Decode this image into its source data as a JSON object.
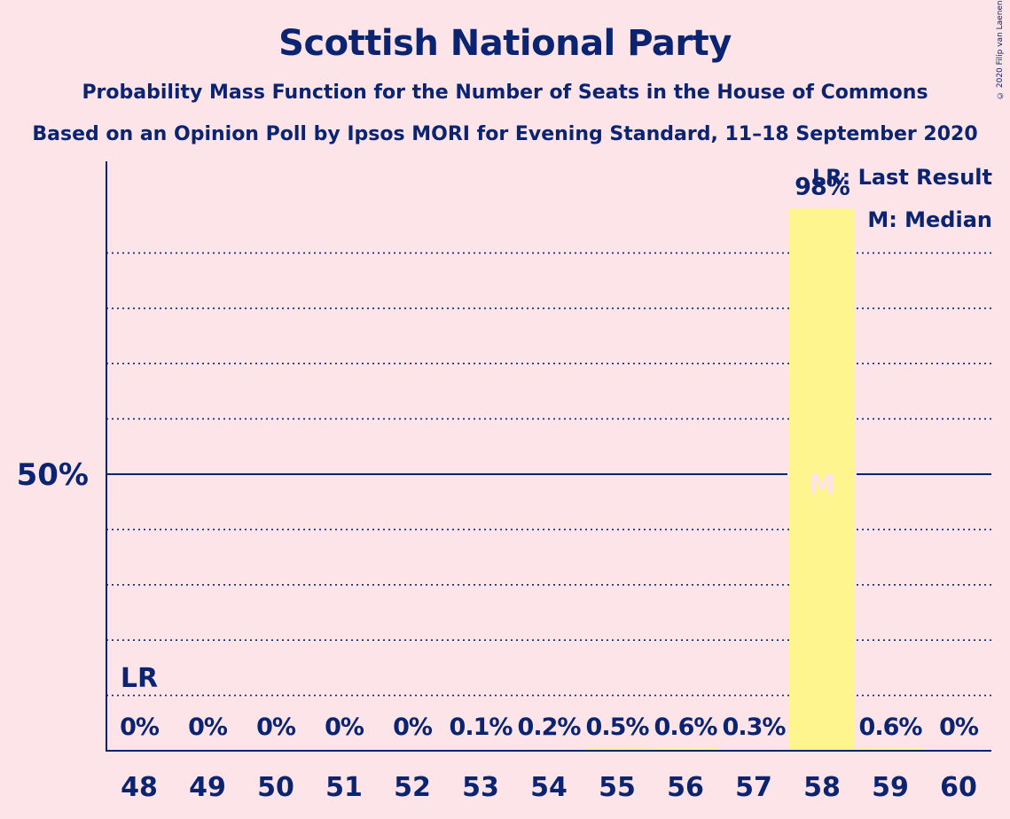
{
  "header": {
    "title": "Scottish National Party",
    "subtitle1": "Probability Mass Function for the Number of Seats in the House of Commons",
    "subtitle2": "Based on an Opinion Poll by Ipsos MORI for Evening Standard, 11–18 September 2020",
    "copyright": "© 2020 Filip van Laenen"
  },
  "legend": {
    "last_result": "LR: Last Result",
    "median": "M: Median"
  },
  "colors": {
    "background": "#fde4e8",
    "text": "#0b2471",
    "bar": "#fef58e",
    "median_marker": "#fde4e8"
  },
  "chart_data": {
    "type": "bar",
    "title": "Scottish National Party",
    "categories": [
      "48",
      "49",
      "50",
      "51",
      "52",
      "53",
      "54",
      "55",
      "56",
      "57",
      "58",
      "59",
      "60"
    ],
    "values": [
      0,
      0,
      0,
      0,
      0,
      0.1,
      0.2,
      0.5,
      0.6,
      0.3,
      98,
      0.6,
      0
    ],
    "value_labels": [
      "0%",
      "0%",
      "0%",
      "0%",
      "0%",
      "0.1%",
      "0.2%",
      "0.5%",
      "0.6%",
      "0.3%",
      "98%",
      "0.6%",
      "0%"
    ],
    "ylim": [
      0,
      100
    ],
    "y_tick_label": "50%",
    "y_tick_value": 50,
    "gridlines": [
      10,
      20,
      30,
      40,
      60,
      70,
      80,
      90
    ],
    "last_result": {
      "category": "48",
      "label": "LR"
    },
    "median": {
      "category": "58",
      "label": "M"
    }
  }
}
